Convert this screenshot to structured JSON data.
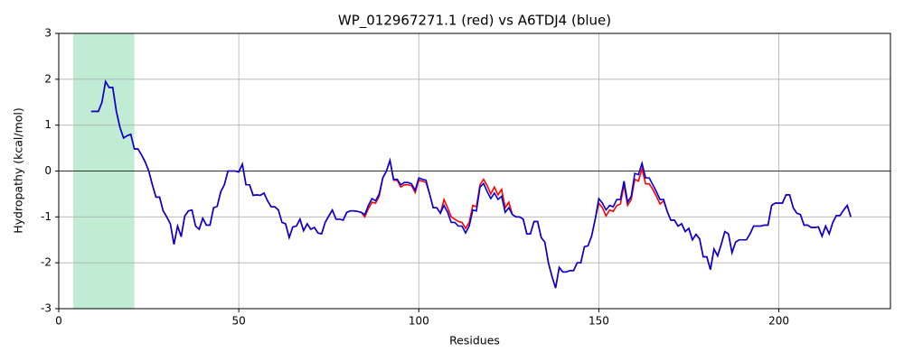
{
  "chart_data": {
    "type": "line",
    "title": "WP_012967271.1 (red) vs A6TDJ4 (blue)",
    "xlabel": "Residues",
    "ylabel": "Hydropathy (kcal/mol)",
    "xlim": [
      0,
      231
    ],
    "ylim": [
      -3,
      3
    ],
    "xticks": [
      0,
      50,
      100,
      150,
      200
    ],
    "yticks": [
      -3,
      -2,
      -1,
      0,
      1,
      2,
      3
    ],
    "grid": true,
    "hline": 0,
    "highlight": [
      4,
      21
    ],
    "highlight_color": "#c0ecd4",
    "x": [
      9,
      10,
      11,
      12,
      13,
      14,
      15,
      16,
      17,
      18,
      19,
      20,
      21,
      22,
      23,
      24,
      25,
      26,
      27,
      28,
      29,
      30,
      31,
      32,
      33,
      34,
      35,
      36,
      37,
      38,
      39,
      40,
      41,
      42,
      43,
      44,
      45,
      46,
      47,
      48,
      49,
      50,
      51,
      52,
      53,
      54,
      55,
      56,
      57,
      58,
      59,
      60,
      61,
      62,
      63,
      64,
      65,
      66,
      67,
      68,
      69,
      70,
      71,
      72,
      73,
      74,
      75,
      76,
      77,
      78,
      79,
      80,
      81,
      82,
      83,
      84,
      85,
      86,
      87,
      88,
      89,
      90,
      91,
      92,
      93,
      94,
      95,
      96,
      97,
      98,
      99,
      100,
      101,
      102,
      103,
      104,
      105,
      106,
      107,
      108,
      109,
      110,
      111,
      112,
      113,
      114,
      115,
      116,
      117,
      118,
      119,
      120,
      121,
      122,
      123,
      124,
      125,
      126,
      127,
      128,
      129,
      130,
      131,
      132,
      133,
      134,
      135,
      136,
      137,
      138,
      139,
      140,
      141,
      142,
      143,
      144,
      145,
      146,
      147,
      148,
      149,
      150,
      151,
      152,
      153,
      154,
      155,
      156,
      157,
      158,
      159,
      160,
      161,
      162,
      163,
      164,
      165,
      166,
      167,
      168,
      169,
      170,
      171,
      172,
      173,
      174,
      175,
      176,
      177,
      178,
      179,
      180,
      181,
      182,
      183,
      184,
      185,
      186,
      187,
      188,
      189,
      190,
      191,
      192,
      193,
      194,
      195,
      196,
      197,
      198,
      199,
      200,
      201,
      202,
      203,
      204,
      205,
      206,
      207,
      208,
      209,
      210,
      211,
      212,
      213,
      214,
      215,
      216,
      217,
      218,
      219,
      220
    ],
    "series": [
      {
        "color": "#ff0000",
        "values": [
          1.3,
          1.3,
          1.3,
          1.5,
          1.95,
          1.82,
          1.82,
          1.3,
          0.95,
          0.72,
          0.77,
          0.8,
          0.48,
          0.48,
          0.35,
          0.2,
          0.0,
          -0.3,
          -0.57,
          -0.57,
          -0.87,
          -1.0,
          -1.15,
          -1.6,
          -1.2,
          -1.43,
          -0.98,
          -0.87,
          -0.85,
          -1.2,
          -1.27,
          -1.03,
          -1.18,
          -1.18,
          -0.8,
          -0.77,
          -0.45,
          -0.3,
          0.0,
          0.0,
          0.0,
          -0.02,
          0.15,
          -0.3,
          -0.3,
          -0.53,
          -0.52,
          -0.53,
          -0.48,
          -0.65,
          -0.78,
          -0.78,
          -0.85,
          -1.12,
          -1.15,
          -1.45,
          -1.22,
          -1.2,
          -1.05,
          -1.3,
          -1.15,
          -1.27,
          -1.23,
          -1.35,
          -1.37,
          -1.12,
          -0.98,
          -0.85,
          -1.05,
          -1.05,
          -1.07,
          -0.9,
          -0.87,
          -0.87,
          -0.88,
          -0.9,
          -1.0,
          -0.82,
          -0.68,
          -0.7,
          -0.55,
          -0.15,
          0.0,
          0.23,
          -0.2,
          -0.2,
          -0.35,
          -0.3,
          -0.3,
          -0.32,
          -0.47,
          -0.2,
          -0.22,
          -0.25,
          -0.5,
          -0.8,
          -0.8,
          -0.92,
          -0.62,
          -0.8,
          -1.0,
          -1.05,
          -1.1,
          -1.12,
          -1.25,
          -1.12,
          -0.75,
          -0.78,
          -0.3,
          -0.18,
          -0.32,
          -0.5,
          -0.35,
          -0.52,
          -0.4,
          -0.8,
          -0.68,
          -0.95,
          -1.0,
          -1.0,
          -1.05,
          -1.37,
          -1.37,
          -1.1,
          -1.1,
          -1.45,
          -1.55,
          -2.0,
          -2.3,
          -2.55,
          -2.1,
          -2.2,
          -2.2,
          -2.17,
          -2.17,
          -2.0,
          -2.0,
          -1.65,
          -1.63,
          -1.42,
          -1.05,
          -0.7,
          -0.8,
          -0.98,
          -0.85,
          -0.88,
          -0.75,
          -0.72,
          -0.3,
          -0.75,
          -0.62,
          -0.18,
          -0.22,
          0.05,
          -0.28,
          -0.28,
          -0.4,
          -0.55,
          -0.72,
          -0.65,
          -0.88,
          -1.07,
          -1.07,
          -1.2,
          -1.15,
          -1.32,
          -1.25,
          -1.5,
          -1.38,
          -1.48,
          -1.87,
          -1.87,
          -2.15,
          -1.7,
          -1.85,
          -1.6,
          -1.32,
          -1.37,
          -1.78,
          -1.55,
          -1.5,
          -1.5,
          -1.5,
          -1.37,
          -1.2,
          -1.2,
          -1.2,
          -1.18,
          -1.18,
          -0.75,
          -0.7,
          -0.7,
          -0.7,
          -0.52,
          -0.52,
          -0.8,
          -0.92,
          -0.95,
          -1.18,
          -1.18,
          -1.23,
          -1.23,
          -1.22,
          -1.42,
          -1.2,
          -1.37,
          -1.12,
          -0.97,
          -0.97,
          -0.85,
          -0.75,
          -1.0
        ]
      },
      {
        "color": "#0000dd",
        "values": [
          1.3,
          1.3,
          1.3,
          1.5,
          1.95,
          1.82,
          1.82,
          1.3,
          0.95,
          0.72,
          0.77,
          0.8,
          0.48,
          0.48,
          0.35,
          0.2,
          0.0,
          -0.3,
          -0.57,
          -0.57,
          -0.87,
          -1.0,
          -1.15,
          -1.6,
          -1.2,
          -1.43,
          -0.98,
          -0.87,
          -0.85,
          -1.2,
          -1.27,
          -1.03,
          -1.18,
          -1.18,
          -0.8,
          -0.77,
          -0.45,
          -0.3,
          0.0,
          0.0,
          0.0,
          -0.02,
          0.15,
          -0.3,
          -0.3,
          -0.53,
          -0.52,
          -0.53,
          -0.48,
          -0.65,
          -0.78,
          -0.78,
          -0.85,
          -1.12,
          -1.15,
          -1.45,
          -1.22,
          -1.2,
          -1.05,
          -1.3,
          -1.15,
          -1.27,
          -1.23,
          -1.35,
          -1.37,
          -1.12,
          -0.98,
          -0.85,
          -1.05,
          -1.05,
          -1.07,
          -0.9,
          -0.87,
          -0.87,
          -0.88,
          -0.9,
          -0.95,
          -0.75,
          -0.6,
          -0.65,
          -0.5,
          -0.15,
          0.0,
          0.23,
          -0.18,
          -0.18,
          -0.3,
          -0.25,
          -0.25,
          -0.28,
          -0.42,
          -0.15,
          -0.18,
          -0.2,
          -0.5,
          -0.8,
          -0.8,
          -0.92,
          -0.75,
          -0.9,
          -1.12,
          -1.12,
          -1.2,
          -1.2,
          -1.35,
          -1.2,
          -0.85,
          -0.87,
          -0.35,
          -0.27,
          -0.45,
          -0.6,
          -0.48,
          -0.62,
          -0.55,
          -0.9,
          -0.8,
          -0.95,
          -1.0,
          -1.0,
          -1.05,
          -1.37,
          -1.37,
          -1.1,
          -1.1,
          -1.45,
          -1.55,
          -2.0,
          -2.3,
          -2.55,
          -2.1,
          -2.2,
          -2.2,
          -2.17,
          -2.17,
          -2.0,
          -2.0,
          -1.65,
          -1.63,
          -1.42,
          -1.05,
          -0.6,
          -0.7,
          -0.85,
          -0.75,
          -0.78,
          -0.62,
          -0.62,
          -0.22,
          -0.68,
          -0.55,
          -0.05,
          -0.08,
          0.17,
          -0.15,
          -0.15,
          -0.3,
          -0.45,
          -0.62,
          -0.62,
          -0.88,
          -1.07,
          -1.07,
          -1.2,
          -1.15,
          -1.32,
          -1.25,
          -1.5,
          -1.38,
          -1.48,
          -1.87,
          -1.87,
          -2.15,
          -1.7,
          -1.85,
          -1.6,
          -1.32,
          -1.37,
          -1.78,
          -1.55,
          -1.5,
          -1.5,
          -1.5,
          -1.37,
          -1.2,
          -1.2,
          -1.2,
          -1.18,
          -1.18,
          -0.75,
          -0.7,
          -0.7,
          -0.7,
          -0.52,
          -0.52,
          -0.8,
          -0.92,
          -0.95,
          -1.18,
          -1.18,
          -1.23,
          -1.23,
          -1.22,
          -1.42,
          -1.2,
          -1.37,
          -1.12,
          -0.97,
          -0.97,
          -0.85,
          -0.75,
          -1.0
        ]
      }
    ]
  }
}
